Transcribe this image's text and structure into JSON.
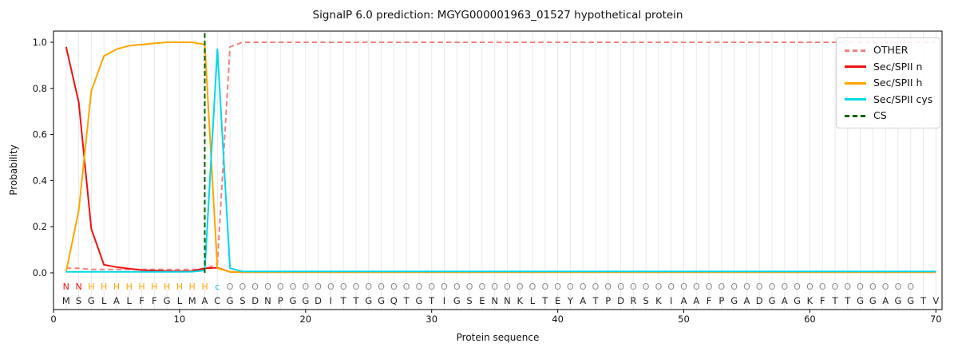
{
  "chart_data": {
    "type": "line",
    "title": "SignalP 6.0 prediction: MGYG000001963_01527 hypothetical protein",
    "xlabel": "Protein sequence",
    "ylabel": "Probability",
    "x_ticks": [
      0,
      10,
      20,
      30,
      40,
      50,
      60,
      70
    ],
    "y_ticks": [
      "0.0",
      "0.2",
      "0.4",
      "0.6",
      "0.8",
      "1.0"
    ],
    "xlim": [
      0,
      70.5
    ],
    "ylim": [
      -0.16,
      1.05
    ],
    "grid": "vertical line per residue",
    "grid_color": "#e9e9e9",
    "legend_position": "upper right",
    "x": [
      1,
      2,
      3,
      4,
      5,
      6,
      7,
      8,
      9,
      10,
      11,
      12,
      13,
      14,
      15,
      16,
      17,
      18,
      19,
      20,
      21,
      22,
      23,
      24,
      25,
      26,
      27,
      28,
      29,
      30,
      31,
      32,
      33,
      34,
      35,
      36,
      37,
      38,
      39,
      40,
      41,
      42,
      43,
      44,
      45,
      46,
      47,
      48,
      49,
      50,
      51,
      52,
      53,
      54,
      55,
      56,
      57,
      58,
      59,
      60,
      61,
      62,
      63,
      64,
      65,
      66,
      67,
      68,
      69,
      70
    ],
    "series": [
      {
        "name": "OTHER",
        "color": "#f28282",
        "dash": true,
        "values": [
          0.02,
          0.02,
          0.015,
          0.015,
          0.015,
          0.015,
          0.015,
          0.015,
          0.015,
          0.015,
          0.015,
          0.015,
          0.04,
          0.98,
          1.0,
          1.0,
          1.0,
          1.0,
          1.0,
          1.0,
          1.0,
          1.0,
          1.0,
          1.0,
          1.0,
          1.0,
          1.0,
          1.0,
          1.0,
          1.0,
          1.0,
          1.0,
          1.0,
          1.0,
          1.0,
          1.0,
          1.0,
          1.0,
          1.0,
          1.0,
          1.0,
          1.0,
          1.0,
          1.0,
          1.0,
          1.0,
          1.0,
          1.0,
          1.0,
          1.0,
          1.0,
          1.0,
          1.0,
          1.0,
          1.0,
          1.0,
          1.0,
          1.0,
          1.0,
          1.0,
          1.0,
          1.0,
          1.0,
          1.0,
          1.0,
          1.0,
          1.0,
          1.0,
          1.0,
          1.0
        ]
      },
      {
        "name": "Sec/SPII n",
        "color": "#ee1111",
        "dash": false,
        "values": [
          0.98,
          0.74,
          0.19,
          0.035,
          0.025,
          0.018,
          0.012,
          0.01,
          0.008,
          0.007,
          0.008,
          0.02,
          0.022,
          0.004,
          0.003,
          0.003,
          0.003,
          0.003,
          0.003,
          0.003,
          0.003,
          0.003,
          0.003,
          0.003,
          0.003,
          0.003,
          0.003,
          0.003,
          0.003,
          0.003,
          0.003,
          0.003,
          0.003,
          0.003,
          0.003,
          0.003,
          0.003,
          0.003,
          0.003,
          0.003,
          0.003,
          0.003,
          0.003,
          0.003,
          0.003,
          0.003,
          0.003,
          0.003,
          0.003,
          0.003,
          0.003,
          0.003,
          0.003,
          0.003,
          0.003,
          0.003,
          0.003,
          0.003,
          0.003,
          0.003,
          0.003,
          0.003,
          0.003,
          0.003,
          0.003,
          0.003,
          0.003,
          0.003,
          0.003,
          0.003
        ]
      },
      {
        "name": "Sec/SPII h",
        "color": "#ffa600",
        "dash": false,
        "values": [
          0.005,
          0.27,
          0.79,
          0.94,
          0.97,
          0.985,
          0.99,
          0.995,
          1.0,
          1.0,
          1.0,
          0.99,
          0.02,
          0.004,
          0.003,
          0.003,
          0.003,
          0.003,
          0.003,
          0.003,
          0.003,
          0.003,
          0.003,
          0.003,
          0.003,
          0.003,
          0.003,
          0.003,
          0.003,
          0.003,
          0.003,
          0.003,
          0.003,
          0.003,
          0.003,
          0.003,
          0.003,
          0.003,
          0.003,
          0.003,
          0.003,
          0.003,
          0.003,
          0.003,
          0.003,
          0.003,
          0.003,
          0.003,
          0.003,
          0.003,
          0.003,
          0.003,
          0.003,
          0.003,
          0.003,
          0.003,
          0.003,
          0.003,
          0.003,
          0.003,
          0.003,
          0.003,
          0.003,
          0.003,
          0.003,
          0.003,
          0.003,
          0.003,
          0.003,
          0.003
        ]
      },
      {
        "name": "Sec/SPII cys",
        "color": "#00d8e8",
        "dash": false,
        "values": [
          0.004,
          0.004,
          0.004,
          0.004,
          0.004,
          0.004,
          0.004,
          0.004,
          0.004,
          0.004,
          0.005,
          0.01,
          0.97,
          0.02,
          0.006,
          0.006,
          0.006,
          0.006,
          0.006,
          0.006,
          0.006,
          0.006,
          0.006,
          0.006,
          0.006,
          0.006,
          0.006,
          0.006,
          0.006,
          0.006,
          0.006,
          0.006,
          0.006,
          0.006,
          0.006,
          0.006,
          0.006,
          0.006,
          0.006,
          0.006,
          0.006,
          0.006,
          0.006,
          0.006,
          0.006,
          0.006,
          0.006,
          0.006,
          0.006,
          0.006,
          0.006,
          0.006,
          0.006,
          0.006,
          0.006,
          0.006,
          0.006,
          0.006,
          0.006,
          0.006,
          0.006,
          0.006,
          0.006,
          0.006,
          0.006,
          0.006,
          0.006,
          0.006,
          0.006,
          0.006
        ]
      },
      {
        "name": "CS",
        "color": "#006400",
        "dash": true,
        "type": "vline",
        "x": 12
      }
    ],
    "sequence": "MSGLALFFGLMACGSDNPGGDITTGGQTGTIGSENNKLTEYATPDRSKIAAFPGADGAGKFTTGGAGGTV",
    "annotation": "NNHHHHHHHHHHcOOOOOOOOOOOOOOOOOOOOOOOOOOOOOOOOOOOOOOOOOOOOOOOOOOOOOOO",
    "annotation_colors": {
      "N": "#ee1111",
      "H": "#ffa600",
      "c": "#00c4d8",
      "O": "#8c8c8c"
    },
    "sequence_color": "#262626"
  }
}
